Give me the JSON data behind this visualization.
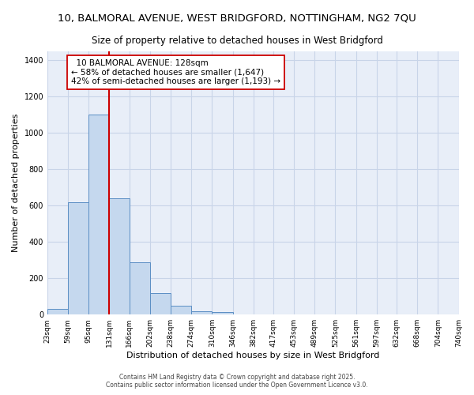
{
  "title_line1": "10, BALMORAL AVENUE, WEST BRIDGFORD, NOTTINGHAM, NG2 7QU",
  "title_line2": "Size of property relative to detached houses in West Bridgford",
  "xlabel": "Distribution of detached houses by size in West Bridgford",
  "ylabel": "Number of detached properties",
  "bin_edges": [
    23,
    59,
    95,
    131,
    166,
    202,
    238,
    274,
    310,
    346,
    382,
    417,
    453,
    489,
    525,
    561,
    597,
    632,
    668,
    704,
    740
  ],
  "bar_heights": [
    30,
    620,
    1100,
    640,
    290,
    120,
    50,
    20,
    15,
    0,
    0,
    0,
    0,
    0,
    0,
    0,
    0,
    0,
    0,
    0
  ],
  "bar_color": "#c5d8ee",
  "bar_edge_color": "#5b8ec4",
  "grid_color": "#c8d4e8",
  "background_color": "#e8eef8",
  "red_line_x": 131,
  "red_line_color": "#cc0000",
  "ylim": [
    0,
    1450
  ],
  "yticks": [
    0,
    200,
    400,
    600,
    800,
    1000,
    1200,
    1400
  ],
  "annotation_text_line1": "  10 BALMORAL AVENUE: 128sqm  ",
  "annotation_text_line2": "← 58% of detached houses are smaller (1,647)",
  "annotation_text_line3": "42% of semi-detached houses are larger (1,193) →",
  "footer_line1": "Contains HM Land Registry data © Crown copyright and database right 2025.",
  "footer_line2": "Contains public sector information licensed under the Open Government Licence v3.0.",
  "title_fontsize": 9.5,
  "subtitle_fontsize": 8.5,
  "tick_fontsize": 6.5,
  "ylabel_fontsize": 8,
  "xlabel_fontsize": 8,
  "annot_fontsize": 7.5,
  "footer_fontsize": 5.5
}
